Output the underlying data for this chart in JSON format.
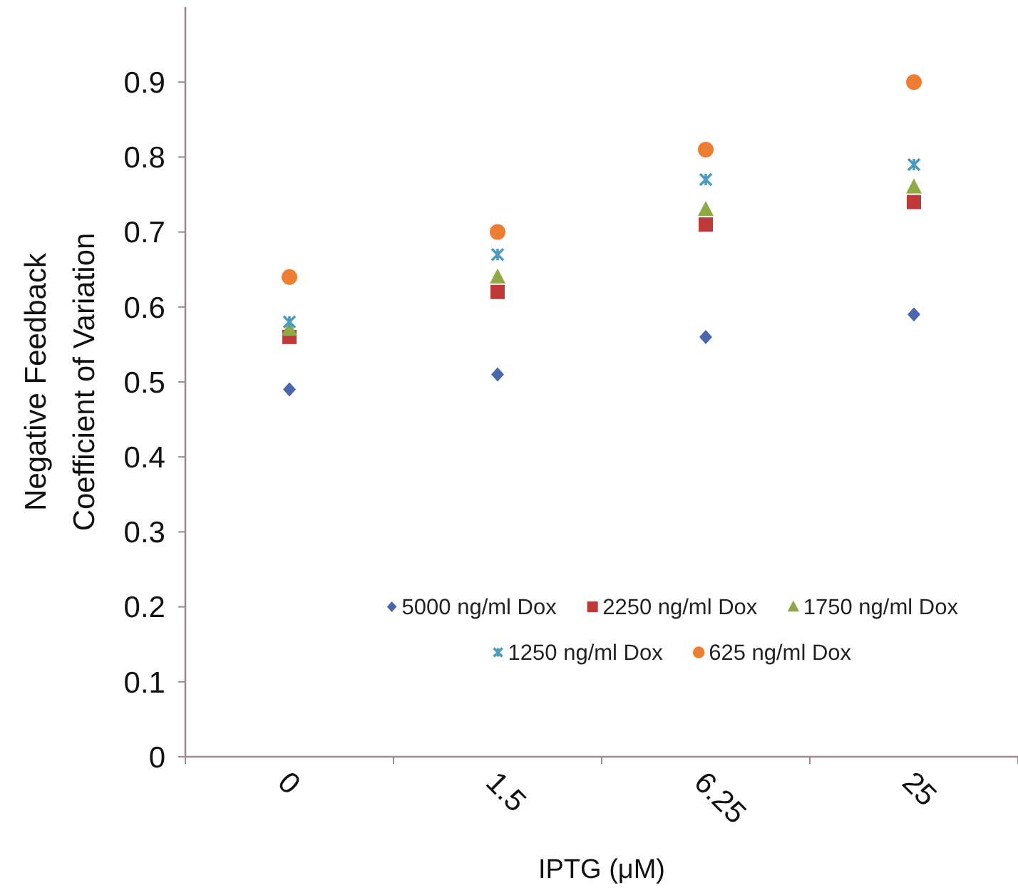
{
  "chart_data": {
    "type": "scatter",
    "xlabel": "IPTG (μM)",
    "ylabel": "Negative Feedback Coefficient of Variation",
    "categories": [
      "0",
      "1.5",
      "6.25",
      "25"
    ],
    "series": [
      {
        "name": "5000 ng/ml Dox",
        "color": "#4a66ac",
        "marker": "diamond",
        "values": [
          0.49,
          0.51,
          0.56,
          0.59
        ]
      },
      {
        "name": "2250 ng/ml Dox",
        "color": "#be3a3a",
        "marker": "square",
        "values": [
          0.56,
          0.62,
          0.71,
          0.74
        ]
      },
      {
        "name": "1750 ng/ml Dox",
        "color": "#8faa45",
        "marker": "triangle",
        "values": [
          0.57,
          0.64,
          0.73,
          0.76
        ]
      },
      {
        "name": "1250 ng/ml Dox",
        "color": "#4a9bbf",
        "marker": "cross",
        "values": [
          0.58,
          0.67,
          0.77,
          0.79
        ]
      },
      {
        "name": "625 ng/ml Dox",
        "color": "#ed7d31",
        "marker": "circle",
        "values": [
          0.64,
          0.7,
          0.81,
          0.9
        ]
      }
    ],
    "ylim": [
      0,
      1
    ],
    "yticks": [
      0,
      0.1,
      0.2,
      0.3,
      0.4,
      0.5,
      0.6,
      0.7,
      0.8,
      0.9
    ],
    "grid": false,
    "legend": "bottom right"
  }
}
